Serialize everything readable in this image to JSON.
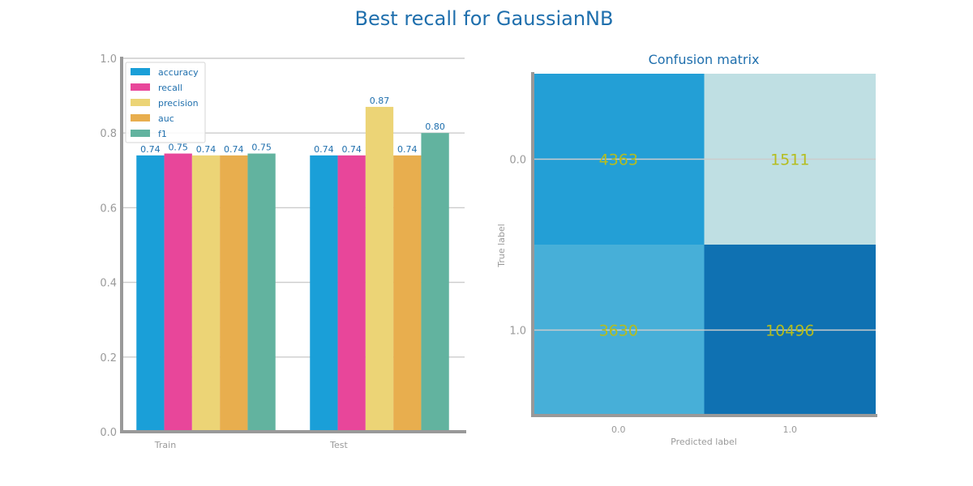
{
  "title": "Best recall for GaussianNB",
  "colors": {
    "title": "#1f6fad",
    "text_blue": "#1f6fad",
    "axis": "#999999",
    "grid": "#cccccc",
    "cm_text": "#b5bd1e"
  },
  "chart_data": [
    {
      "type": "bar",
      "title": "",
      "xlabel": "",
      "ylabel": "",
      "categories": [
        "Train",
        "Test"
      ],
      "ylim": [
        0,
        1
      ],
      "yticks": [
        "0.0",
        "0.2",
        "0.4",
        "0.6",
        "0.8",
        "1.0"
      ],
      "grid": "horizontal",
      "legend_placement": "top-left",
      "series": [
        {
          "name": "accuracy",
          "color": "#1a9fd8",
          "values": [
            0.74,
            0.74
          ],
          "labels": [
            "0.74",
            "0.74"
          ]
        },
        {
          "name": "recall",
          "color": "#e8469a",
          "values": [
            0.745,
            0.74
          ],
          "labels": [
            "0.75",
            "0.74"
          ]
        },
        {
          "name": "precision",
          "color": "#ecd476",
          "values": [
            0.74,
            0.87
          ],
          "labels": [
            "0.74",
            "0.87"
          ]
        },
        {
          "name": "auc",
          "color": "#e8ae4e",
          "values": [
            0.74,
            0.74
          ],
          "labels": [
            "0.74",
            "0.74"
          ]
        },
        {
          "name": "f1",
          "color": "#62b39f",
          "values": [
            0.745,
            0.8
          ],
          "labels": [
            "0.75",
            "0.80"
          ]
        }
      ]
    },
    {
      "type": "heatmap",
      "title": "Confusion matrix",
      "xlabel": "Predicted label",
      "ylabel": "True label",
      "x_categories": [
        "0.0",
        "1.0"
      ],
      "y_categories": [
        "0.0",
        "1.0"
      ],
      "values": [
        [
          4363,
          1511
        ],
        [
          3630,
          10496
        ]
      ],
      "cell_colors": [
        [
          "#239fd6",
          "#bfdfe3"
        ],
        [
          "#47afd8",
          "#0f71b2"
        ]
      ]
    }
  ]
}
